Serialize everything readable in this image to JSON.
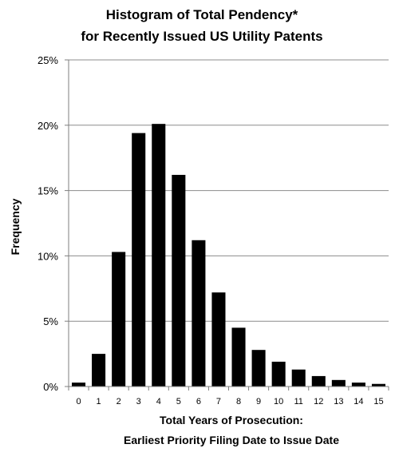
{
  "chart_data": {
    "type": "bar",
    "title": [
      "Histogram of Total Pendency*",
      "for Recently Issued US Utility Patents"
    ],
    "xlabel": [
      "Total Years of Prosecution:",
      "Earliest Priority Filing Date to Issue Date"
    ],
    "ylabel": "Frequency",
    "categories": [
      "0",
      "1",
      "2",
      "3",
      "4",
      "5",
      "6",
      "7",
      "8",
      "9",
      "10",
      "11",
      "12",
      "13",
      "14",
      "15"
    ],
    "values": [
      0.3,
      2.5,
      10.3,
      19.4,
      20.1,
      16.2,
      11.2,
      7.2,
      4.5,
      2.8,
      1.9,
      1.3,
      0.8,
      0.5,
      0.3,
      0.2
    ],
    "y_ticks": [
      "0%",
      "5%",
      "10%",
      "15%",
      "20%",
      "25%"
    ],
    "y_tick_values": [
      0,
      5,
      10,
      15,
      20,
      25
    ],
    "ylim": [
      0,
      25
    ],
    "grid": true,
    "legend": "none",
    "colors": {
      "bar": "#000000",
      "grid": "#8c8c8c",
      "axis": "#7f7f7f"
    }
  }
}
